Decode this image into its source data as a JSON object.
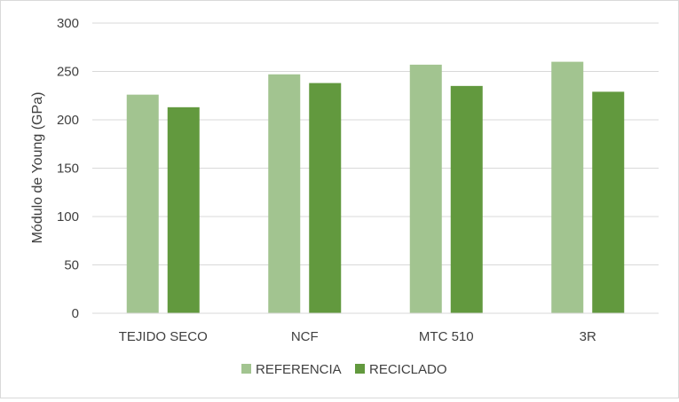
{
  "chart_data": {
    "type": "bar",
    "title": "",
    "xlabel": "",
    "ylabel": "Módulo de Young (GPa)",
    "ylim": [
      0,
      300
    ],
    "yticks": [
      0,
      50,
      100,
      150,
      200,
      250,
      300
    ],
    "grid": true,
    "legend_position": "bottom",
    "categories": [
      "TEJIDO SECO",
      "NCF",
      "MTC 510",
      "3R"
    ],
    "series": [
      {
        "name": "REFERENCIA",
        "color": "#a2c490",
        "values": [
          226,
          247,
          257,
          260
        ]
      },
      {
        "name": "RECICLADO",
        "color": "#62993e",
        "values": [
          213,
          238,
          235,
          229
        ]
      }
    ]
  }
}
